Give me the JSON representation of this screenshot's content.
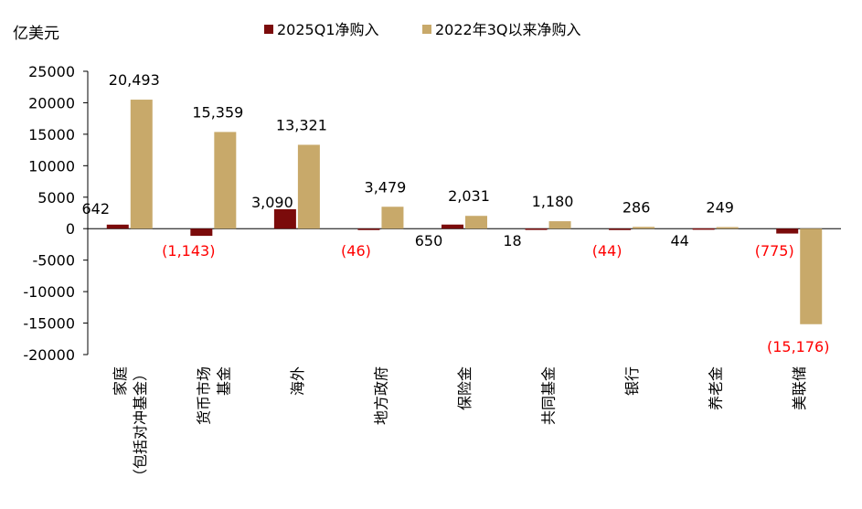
{
  "chart_data": {
    "type": "bar",
    "ylabel": "亿美元",
    "ylim": [
      -20000,
      25000
    ],
    "yticks": [
      25000,
      20000,
      15000,
      10000,
      5000,
      0,
      -5000,
      -10000,
      -15000,
      -20000
    ],
    "grid": false,
    "legend_position": "top",
    "categories": [
      "家庭",
      "货币市场",
      "海外",
      "地方政府",
      "保险金",
      "共同基金",
      "银行",
      "养老金",
      "美联储"
    ],
    "category_sublabels": [
      "（包括对冲基金）",
      "基金",
      "",
      "",
      "",
      "",
      "",
      "",
      ""
    ],
    "series": [
      {
        "name": "2025Q1净购入",
        "color": "#7b0b0b",
        "values": [
          642,
          -1143,
          3090,
          -46,
          650,
          18,
          -44,
          44,
          -775
        ],
        "labels": [
          "642",
          "(1,143)",
          "3,090",
          "(46)",
          "650",
          "18",
          "(44)",
          "44",
          "(775)"
        ]
      },
      {
        "name": "2022年3Q以来净购入",
        "color": "#c8a96a",
        "values": [
          20493,
          15359,
          13321,
          3479,
          2031,
          1180,
          286,
          249,
          -15176
        ],
        "labels": [
          "20,493",
          "15,359",
          "13,321",
          "3,479",
          "2,031",
          "1,180",
          "286",
          "249",
          "(15,176)"
        ]
      }
    ],
    "negative_label_color": "#ff0000"
  }
}
